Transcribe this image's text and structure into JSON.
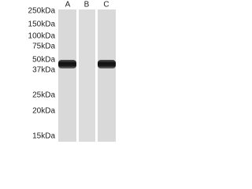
{
  "lanes": [
    "A",
    "B",
    "C"
  ],
  "markers": [
    "250kDa",
    "150kDa",
    "100kDa",
    "75kDa",
    "50kDa",
    "37kDa",
    "25kDa",
    "20kDa",
    "15kDa"
  ]
}
